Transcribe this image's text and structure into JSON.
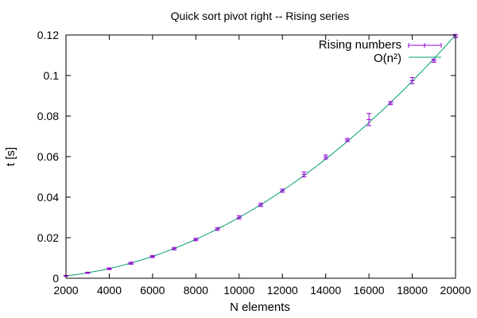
{
  "chart_data": {
    "type": "line",
    "title": "Quick sort pivot right -- Rising series",
    "xlabel": "N elements",
    "ylabel": "t [s]",
    "xlim": [
      2000,
      20000
    ],
    "ylim": [
      0,
      0.12
    ],
    "xticks": [
      2000,
      4000,
      6000,
      8000,
      10000,
      12000,
      14000,
      16000,
      18000,
      20000
    ],
    "xtick_labels": [
      "2000",
      "4000",
      "6000",
      "8000",
      "10000",
      "12000",
      "14000",
      "16000",
      "18000",
      "20000"
    ],
    "yticks": [
      0,
      0.02,
      0.04,
      0.06,
      0.08,
      0.1,
      0.12
    ],
    "ytick_labels": [
      "0",
      "0.02",
      "0.04",
      "0.06",
      "0.08",
      "0.1",
      "0.12"
    ],
    "grid": false,
    "legend_position": "top-right",
    "series": [
      {
        "name": "Rising numbers",
        "style": "errorbars",
        "color": "#9400d3",
        "points": [
          {
            "x": 2000,
            "y": 0.0012,
            "err": 0.0002
          },
          {
            "x": 3000,
            "y": 0.0027,
            "err": 0.0003
          },
          {
            "x": 4000,
            "y": 0.0047,
            "err": 0.0004
          },
          {
            "x": 5000,
            "y": 0.0074,
            "err": 0.0005
          },
          {
            "x": 6000,
            "y": 0.0107,
            "err": 0.0005
          },
          {
            "x": 7000,
            "y": 0.0146,
            "err": 0.0006
          },
          {
            "x": 8000,
            "y": 0.0191,
            "err": 0.0006
          },
          {
            "x": 9000,
            "y": 0.0243,
            "err": 0.0007
          },
          {
            "x": 10000,
            "y": 0.03,
            "err": 0.0008
          },
          {
            "x": 11000,
            "y": 0.0362,
            "err": 0.0008
          },
          {
            "x": 12000,
            "y": 0.0432,
            "err": 0.0008
          },
          {
            "x": 13000,
            "y": 0.0512,
            "err": 0.0012
          },
          {
            "x": 14000,
            "y": 0.0598,
            "err": 0.001
          },
          {
            "x": 15000,
            "y": 0.0682,
            "err": 0.0008
          },
          {
            "x": 16000,
            "y": 0.0783,
            "err": 0.003
          },
          {
            "x": 17000,
            "y": 0.0864,
            "err": 0.0008
          },
          {
            "x": 18000,
            "y": 0.0975,
            "err": 0.0015
          },
          {
            "x": 19000,
            "y": 0.1073,
            "err": 0.0008
          },
          {
            "x": 20000,
            "y": 0.1195,
            "err": 0.0008
          }
        ]
      },
      {
        "name": "O(n²)",
        "style": "line",
        "color": "#009e73",
        "formula": "a*n^2",
        "coefficient": 3e-10
      }
    ]
  }
}
